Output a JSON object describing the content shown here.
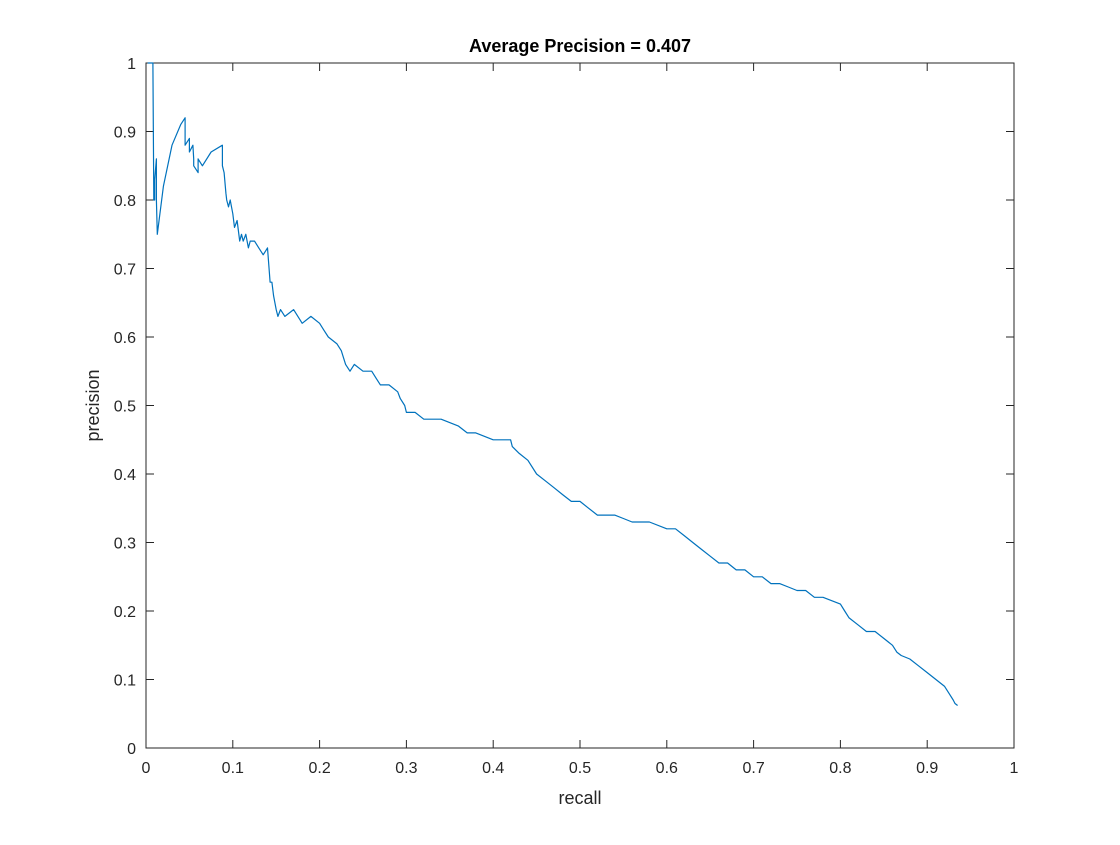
{
  "chart_data": {
    "type": "line",
    "title": "Average Precision = 0.407",
    "xlabel": "recall",
    "ylabel": "precision",
    "xlim": [
      0,
      1
    ],
    "ylim": [
      0,
      1
    ],
    "grid": true,
    "xticks": [
      0,
      0.1,
      0.2,
      0.3,
      0.4,
      0.5,
      0.6,
      0.7,
      0.8,
      0.9,
      1
    ],
    "xtick_labels": [
      "0",
      "0.1",
      "0.2",
      "0.3",
      "0.4",
      "0.5",
      "0.6",
      "0.7",
      "0.8",
      "0.9",
      "1"
    ],
    "yticks": [
      0,
      0.1,
      0.2,
      0.3,
      0.4,
      0.5,
      0.6,
      0.7,
      0.8,
      0.9,
      1
    ],
    "ytick_labels": [
      "0",
      "0.1",
      "0.2",
      "0.3",
      "0.4",
      "0.5",
      "0.6",
      "0.7",
      "0.8",
      "0.9",
      "1"
    ],
    "series": [
      {
        "color": "#0072BD",
        "x": [
          0.002,
          0.005,
          0.008,
          0.009,
          0.01,
          0.01,
          0.012,
          0.012,
          0.013,
          0.02,
          0.03,
          0.04,
          0.045,
          0.045,
          0.05,
          0.05,
          0.054,
          0.055,
          0.055,
          0.06,
          0.06,
          0.065,
          0.075,
          0.088,
          0.088,
          0.09,
          0.092,
          0.093,
          0.095,
          0.097,
          0.1,
          0.102,
          0.105,
          0.108,
          0.11,
          0.112,
          0.115,
          0.118,
          0.12,
          0.125,
          0.13,
          0.135,
          0.14,
          0.143,
          0.145,
          0.147,
          0.15,
          0.152,
          0.155,
          0.16,
          0.17,
          0.175,
          0.18,
          0.19,
          0.2,
          0.205,
          0.21,
          0.22,
          0.225,
          0.23,
          0.235,
          0.24,
          0.25,
          0.26,
          0.265,
          0.27,
          0.28,
          0.29,
          0.293,
          0.298,
          0.3,
          0.31,
          0.32,
          0.34,
          0.36,
          0.37,
          0.38,
          0.4,
          0.415,
          0.42,
          0.422,
          0.43,
          0.44,
          0.45,
          0.46,
          0.47,
          0.48,
          0.49,
          0.5,
          0.51,
          0.52,
          0.53,
          0.54,
          0.55,
          0.56,
          0.58,
          0.6,
          0.61,
          0.62,
          0.63,
          0.64,
          0.65,
          0.66,
          0.67,
          0.68,
          0.69,
          0.7,
          0.71,
          0.72,
          0.73,
          0.74,
          0.75,
          0.76,
          0.77,
          0.78,
          0.79,
          0.8,
          0.805,
          0.81,
          0.82,
          0.83,
          0.84,
          0.85,
          0.86,
          0.865,
          0.87,
          0.88,
          0.89,
          0.9,
          0.91,
          0.92,
          0.925,
          0.93,
          0.932,
          0.935
        ],
        "values": [
          1.0,
          1.0,
          1.0,
          0.8,
          0.8,
          0.83,
          0.86,
          0.8,
          0.75,
          0.82,
          0.88,
          0.91,
          0.92,
          0.88,
          0.89,
          0.87,
          0.88,
          0.86,
          0.85,
          0.84,
          0.86,
          0.85,
          0.87,
          0.88,
          0.85,
          0.84,
          0.81,
          0.8,
          0.79,
          0.8,
          0.78,
          0.76,
          0.77,
          0.74,
          0.75,
          0.74,
          0.75,
          0.73,
          0.74,
          0.74,
          0.73,
          0.72,
          0.73,
          0.68,
          0.68,
          0.66,
          0.64,
          0.63,
          0.64,
          0.63,
          0.64,
          0.63,
          0.62,
          0.63,
          0.62,
          0.61,
          0.6,
          0.59,
          0.58,
          0.56,
          0.55,
          0.56,
          0.55,
          0.55,
          0.54,
          0.53,
          0.53,
          0.52,
          0.51,
          0.5,
          0.49,
          0.49,
          0.48,
          0.48,
          0.47,
          0.46,
          0.46,
          0.45,
          0.45,
          0.45,
          0.44,
          0.43,
          0.42,
          0.4,
          0.39,
          0.38,
          0.37,
          0.36,
          0.36,
          0.35,
          0.34,
          0.34,
          0.34,
          0.335,
          0.33,
          0.33,
          0.32,
          0.32,
          0.31,
          0.3,
          0.29,
          0.28,
          0.27,
          0.27,
          0.26,
          0.26,
          0.25,
          0.25,
          0.24,
          0.24,
          0.235,
          0.23,
          0.23,
          0.22,
          0.22,
          0.215,
          0.21,
          0.2,
          0.19,
          0.18,
          0.17,
          0.17,
          0.16,
          0.15,
          0.14,
          0.135,
          0.13,
          0.12,
          0.11,
          0.1,
          0.09,
          0.08,
          0.07,
          0.065,
          0.062
        ]
      }
    ]
  }
}
